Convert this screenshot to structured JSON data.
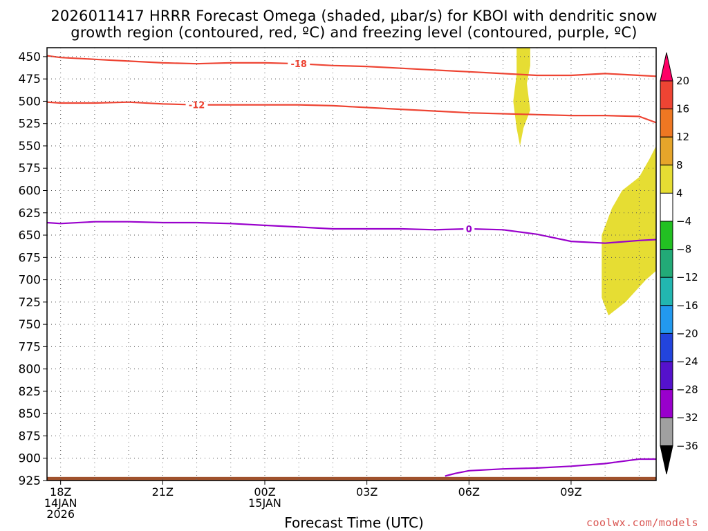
{
  "title_line1": "2026011417 HRRR Forecast Omega (shaded, μbar/s) for KBOI with dendritic snow",
  "title_line2": "growth region (contoured, red, ºC) and freezing level (contoured, purple, ºC)",
  "credit": "coolwx.com/models",
  "colors": {
    "dgz": "#ee4433",
    "freezing": "#9900cc",
    "omega_fill": "#e6dd33",
    "ground": "#a0522d"
  },
  "chart_data": {
    "type": "heatmap",
    "xlabel": "Forecast Time (UTC)",
    "ylabel": "",
    "ylim": [
      925,
      440
    ],
    "xlim": [
      -0.4,
      17.5
    ],
    "grid": true,
    "y_ticks": [
      450,
      475,
      500,
      525,
      550,
      575,
      600,
      625,
      650,
      675,
      700,
      725,
      750,
      775,
      800,
      825,
      850,
      875,
      900,
      925
    ],
    "x_ticks": [
      {
        "x": 0,
        "lines": [
          "18Z",
          "14JAN",
          "2026"
        ]
      },
      {
        "x": 3,
        "lines": [
          "21Z"
        ]
      },
      {
        "x": 6,
        "lines": [
          "00Z",
          "15JAN"
        ]
      },
      {
        "x": 9,
        "lines": [
          "03Z"
        ]
      },
      {
        "x": 12,
        "lines": [
          "06Z"
        ]
      },
      {
        "x": 15,
        "lines": [
          "09Z"
        ]
      }
    ],
    "contours": [
      {
        "level": "-18",
        "color_key": "dgz",
        "points": [
          [
            -0.4,
            449
          ],
          [
            0,
            451
          ],
          [
            1,
            453
          ],
          [
            2,
            455
          ],
          [
            3,
            457
          ],
          [
            4,
            458
          ],
          [
            5,
            457
          ],
          [
            6,
            457
          ],
          [
            7,
            458
          ],
          [
            8,
            460
          ],
          [
            9,
            461
          ],
          [
            10,
            463
          ],
          [
            11,
            465
          ],
          [
            12,
            467
          ],
          [
            13,
            469
          ],
          [
            14,
            471
          ],
          [
            15,
            471
          ],
          [
            16,
            469
          ],
          [
            17,
            471
          ],
          [
            17.5,
            472
          ]
        ],
        "label_at": 7
      },
      {
        "level": "-12",
        "color_key": "dgz",
        "points": [
          [
            -0.4,
            501
          ],
          [
            0,
            502
          ],
          [
            1,
            502
          ],
          [
            2,
            501
          ],
          [
            3,
            503
          ],
          [
            4,
            504
          ],
          [
            5,
            504
          ],
          [
            6,
            504
          ],
          [
            7,
            504
          ],
          [
            8,
            505
          ],
          [
            9,
            507
          ],
          [
            10,
            509
          ],
          [
            11,
            511
          ],
          [
            12,
            513
          ],
          [
            13,
            514
          ],
          [
            14,
            515
          ],
          [
            15,
            516
          ],
          [
            16,
            516
          ],
          [
            17,
            517
          ],
          [
            17.5,
            524
          ]
        ],
        "label_at": 4
      },
      {
        "level": "0",
        "color_key": "freezing",
        "points": [
          [
            -0.4,
            636
          ],
          [
            0,
            637
          ],
          [
            1,
            635
          ],
          [
            2,
            635
          ],
          [
            3,
            636
          ],
          [
            4,
            636
          ],
          [
            5,
            637
          ],
          [
            6,
            639
          ],
          [
            7,
            641
          ],
          [
            8,
            643
          ],
          [
            9,
            643
          ],
          [
            10,
            643
          ],
          [
            11,
            644
          ],
          [
            12,
            643
          ],
          [
            13,
            644
          ],
          [
            14,
            649
          ],
          [
            15,
            657
          ],
          [
            16,
            659
          ],
          [
            17,
            656
          ],
          [
            17.5,
            655
          ]
        ],
        "label_at": 12
      },
      {
        "level": "0",
        "color_key": "freezing",
        "points": [
          [
            11.3,
            920
          ],
          [
            11.6,
            917
          ],
          [
            12,
            914
          ],
          [
            13,
            912
          ],
          [
            14,
            911
          ],
          [
            15,
            909
          ],
          [
            16,
            906
          ],
          [
            17,
            901
          ],
          [
            17.5,
            901
          ]
        ],
        "label_at": null
      }
    ],
    "omega_regions": [
      {
        "value_range": [
          4,
          8
        ],
        "points": [
          [
            13.4,
            440
          ],
          [
            13.8,
            440
          ],
          [
            13.8,
            460
          ],
          [
            13.7,
            480
          ],
          [
            13.8,
            510
          ],
          [
            13.6,
            530
          ],
          [
            13.5,
            550
          ],
          [
            13.4,
            530
          ],
          [
            13.3,
            500
          ],
          [
            13.4,
            470
          ]
        ]
      },
      {
        "value_range": [
          4,
          8
        ],
        "points": [
          [
            17.5,
            550
          ],
          [
            17.3,
            565
          ],
          [
            17.0,
            585
          ],
          [
            16.5,
            600
          ],
          [
            16.2,
            620
          ],
          [
            15.9,
            650
          ],
          [
            15.9,
            720
          ],
          [
            16.1,
            740
          ],
          [
            16.6,
            725
          ],
          [
            17.2,
            700
          ],
          [
            17.5,
            690
          ]
        ]
      }
    ],
    "colorbar": {
      "units": "μbar/s",
      "labels": [
        20,
        16,
        12,
        8,
        4,
        -4,
        -8,
        -12,
        -16,
        -20,
        -24,
        -28,
        -32,
        -36
      ],
      "bins": [
        {
          "color": "#ff0066"
        },
        {
          "color": "#ee4433"
        },
        {
          "color": "#ee7722"
        },
        {
          "color": "#e6a52a"
        },
        {
          "color": "#e6dd33"
        },
        {
          "color": "#ffffff"
        },
        {
          "color": "#22c022"
        },
        {
          "color": "#22aa77"
        },
        {
          "color": "#22b6b0"
        },
        {
          "color": "#2299ee"
        },
        {
          "color": "#2244dd"
        },
        {
          "color": "#5511cc"
        },
        {
          "color": "#9900cc"
        },
        {
          "color": "#a0a0a0"
        },
        {
          "color": "#000000"
        }
      ]
    }
  }
}
